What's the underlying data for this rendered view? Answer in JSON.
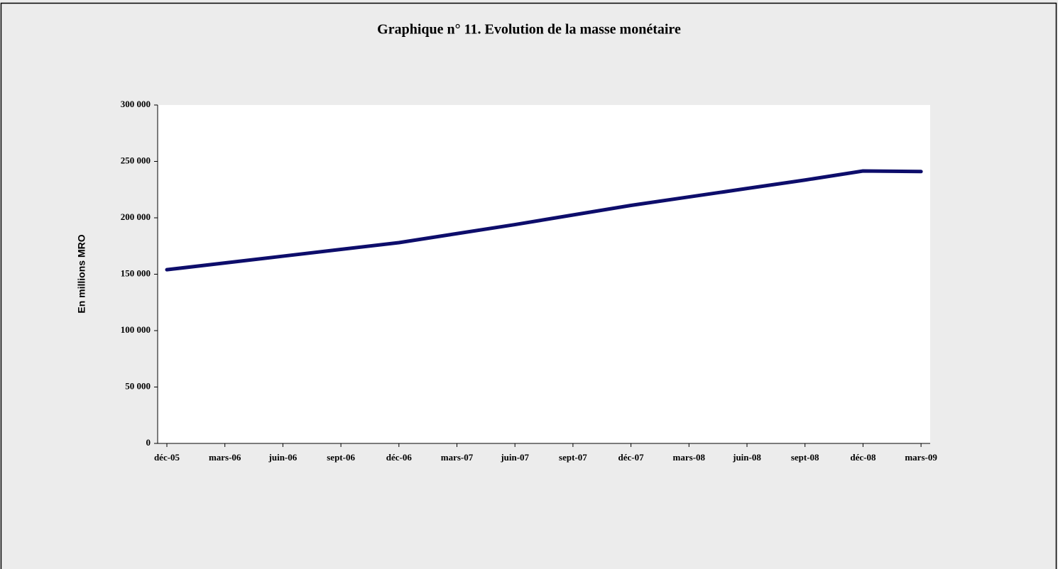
{
  "chart_data": {
    "type": "line",
    "title": "Graphique n° 11. Evolution de la masse monétaire",
    "y_label": "En millions MRO",
    "categories": [
      "déc-05",
      "mars-06",
      "juin-06",
      "sept-06",
      "déc-06",
      "mars-07",
      "juin-07",
      "sept-07",
      "déc-07",
      "mars-08",
      "juin-08",
      "sept-08",
      "déc-08",
      "mars-09"
    ],
    "series": [
      {
        "name": "Masse monétaire",
        "color": "#0d0d6b",
        "values": [
          154000,
          160000,
          166000,
          172000,
          178000,
          186000,
          194000,
          202500,
          211000,
          218500,
          226000,
          233500,
          241500,
          241000
        ]
      }
    ],
    "ylim": [
      0,
      300000
    ],
    "yticks": [
      0,
      {
        "value": 50000,
        "label": "50 000"
      },
      {
        "value": 100000,
        "label": "100 000"
      },
      {
        "value": 150000,
        "label": "150 000"
      },
      {
        "value": 200000,
        "label": "200 000"
      },
      {
        "value": 250000,
        "label": "250 000"
      },
      {
        "value": 300000,
        "label": "300 000"
      }
    ],
    "legend": false
  }
}
